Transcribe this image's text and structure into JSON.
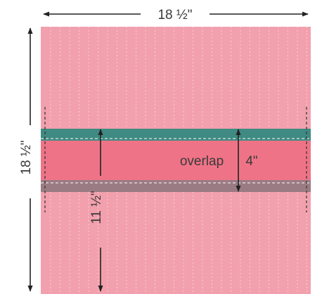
{
  "labels": {
    "top_width": "18 ½\"",
    "left_height": "18 ½\"",
    "overlap_text": "overlap",
    "overlap_measure": "4\"",
    "lower_measure": "11 ½\""
  },
  "colors": {
    "panel_pink": "#f2a0ad",
    "overlap_band": "#ef7387",
    "teal_band": "#3f8a83",
    "gray_band": "#9b7b83",
    "dashed_line": "#ffffff",
    "arrow": "#222222"
  }
}
